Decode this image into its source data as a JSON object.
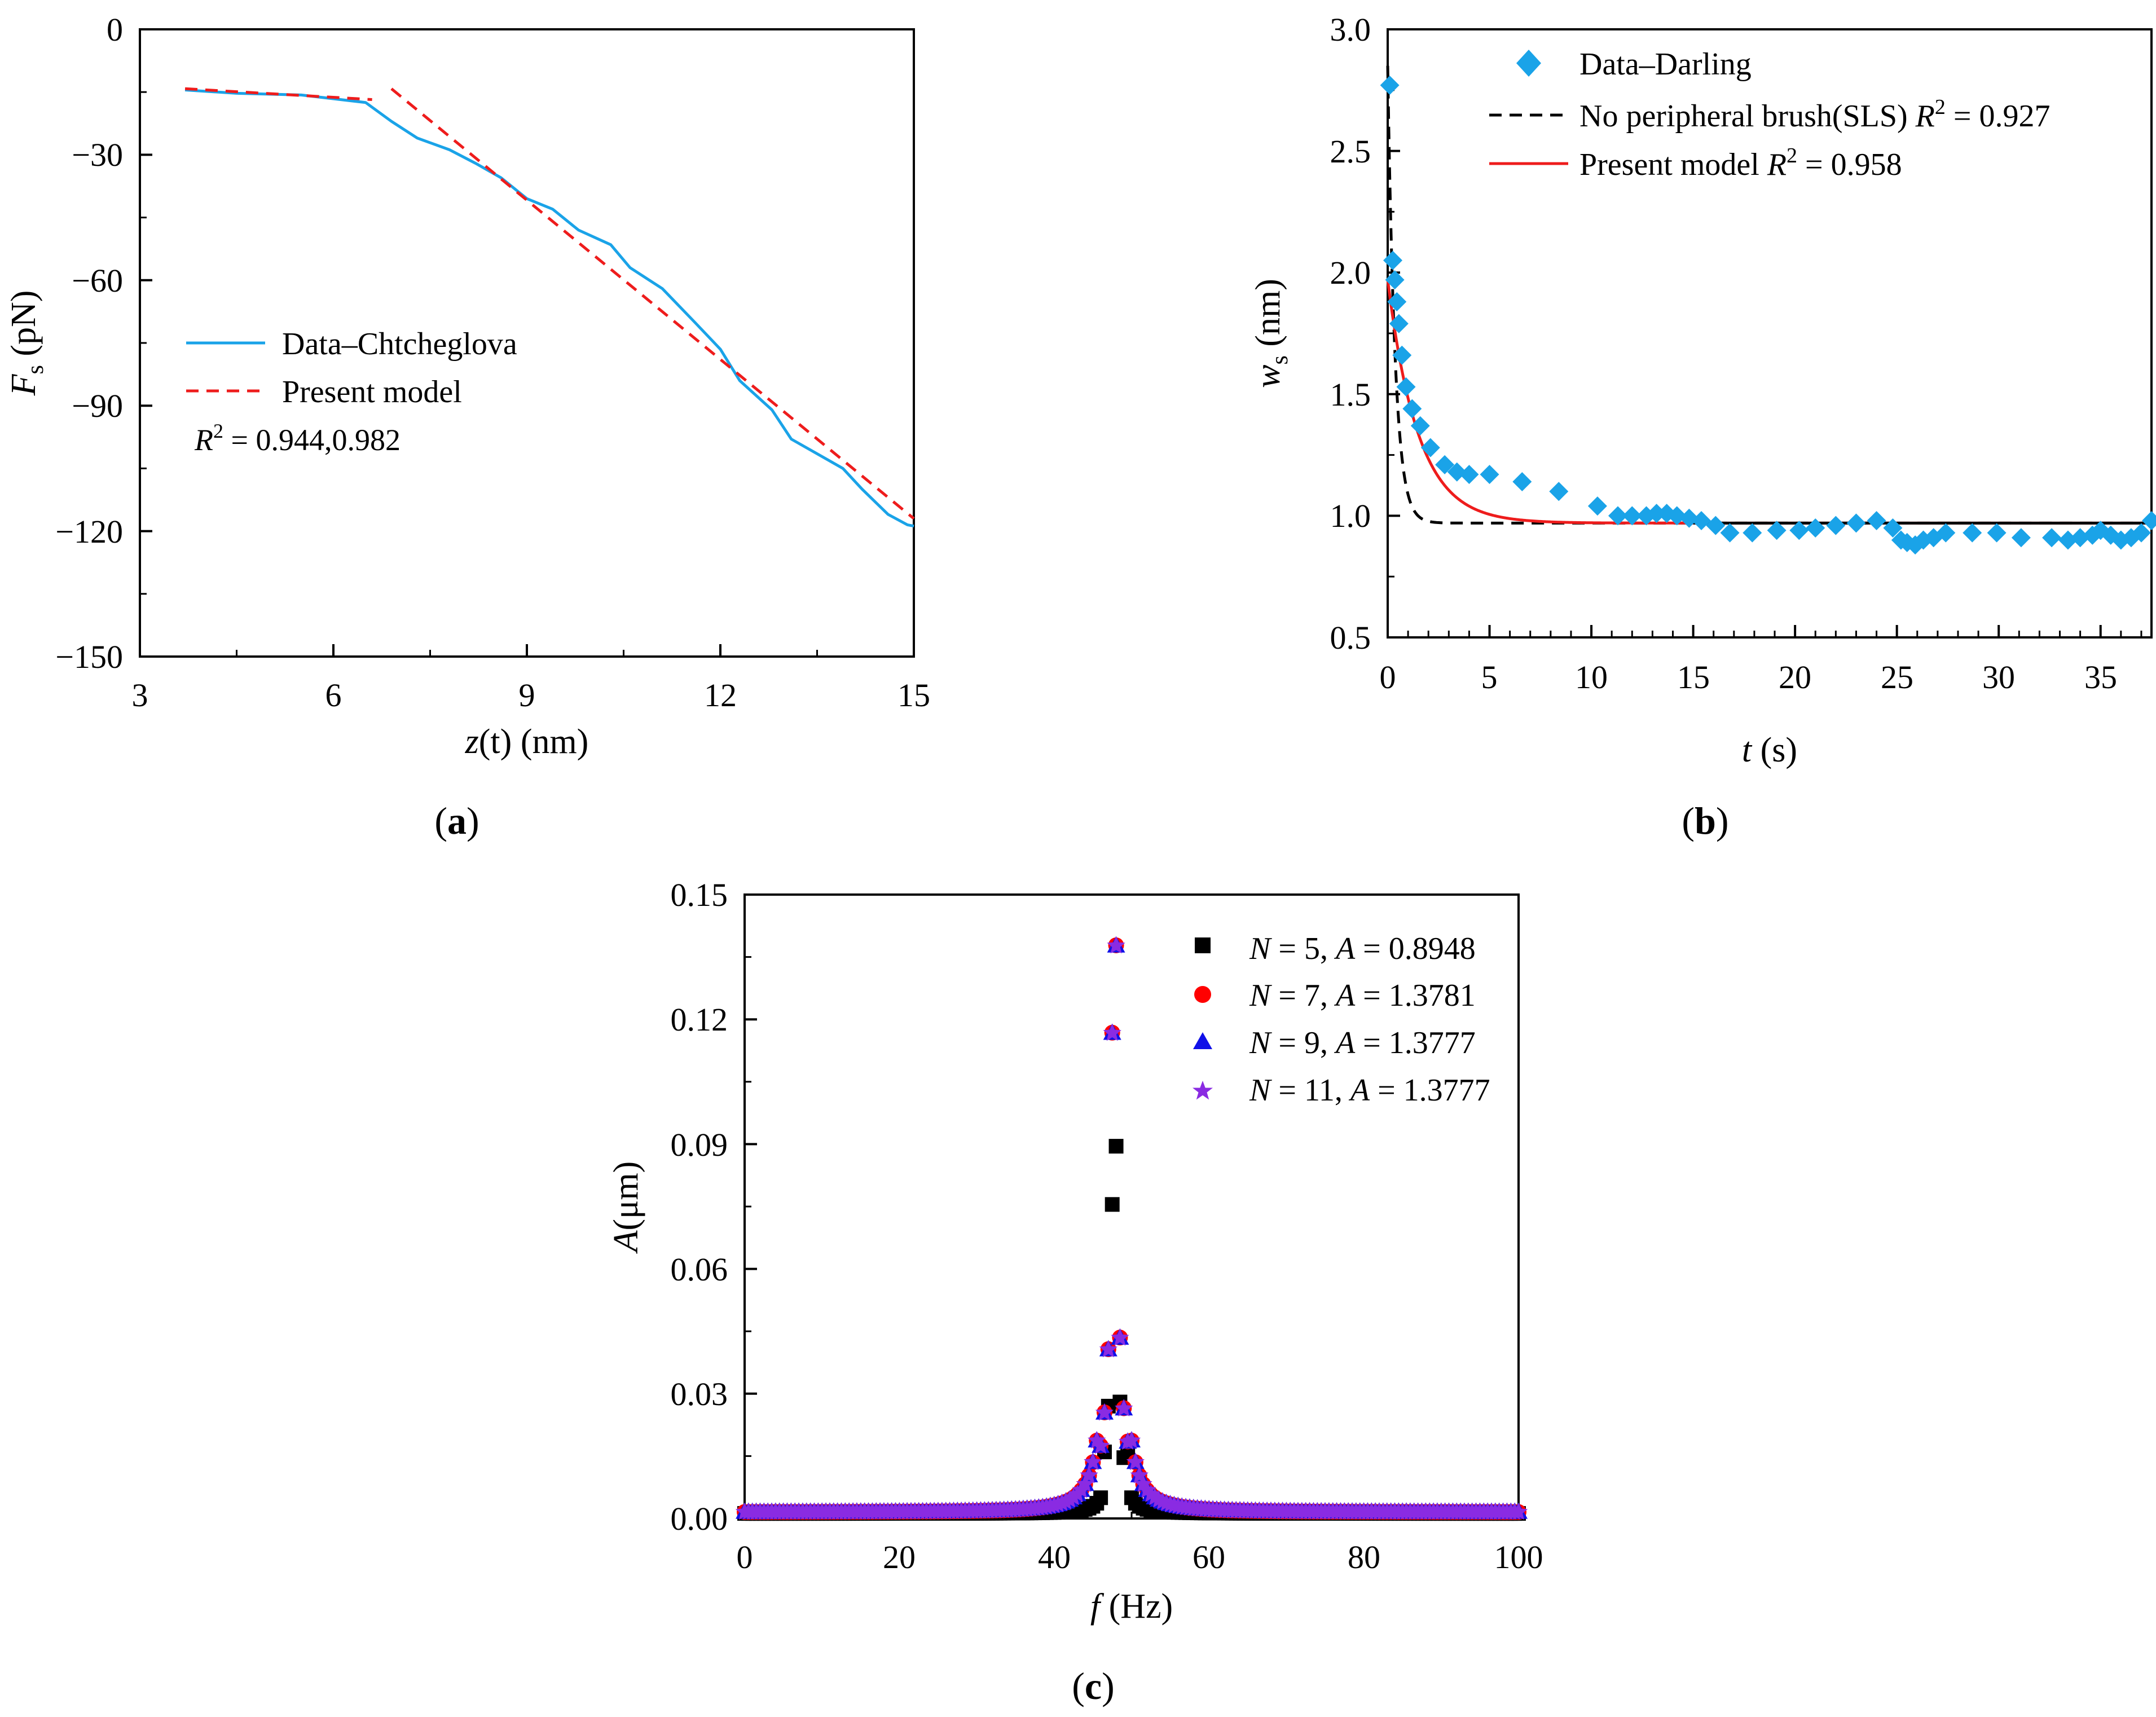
{
  "colors": {
    "axis": "#000000",
    "data_blue": "#1AA3E8",
    "model_red": "#EE1C1C",
    "black": "#000000",
    "red_marker": "#FF0000",
    "blue_marker": "#1010E8",
    "purple_marker": "#8A2BE2"
  },
  "chart_data": [
    {
      "id": "a",
      "panel_label": "a",
      "type": "line",
      "xlabel": {
        "var": "z",
        "arg": "(t)",
        "unit": " (nm)"
      },
      "ylabel": {
        "var": "F",
        "sub": "s",
        "unit": " (pN)"
      },
      "xlim": [
        3,
        15
      ],
      "ylim": [
        -150,
        0
      ],
      "xticks": [
        3,
        6,
        9,
        12,
        15
      ],
      "xtick_labels": [
        "3",
        "6",
        "9",
        "12",
        "15"
      ],
      "yticks": [
        0,
        -30,
        -60,
        -90,
        -120,
        -150
      ],
      "ytick_labels": [
        "0",
        "−30",
        "−60",
        "−90",
        "−120",
        "−150"
      ],
      "legend_position": "center-left",
      "series": [
        {
          "name": "Data–Chtcheglova",
          "style": "solid",
          "color": "#1AA3E8",
          "x": [
            3.7,
            4.5,
            5.5,
            6.5,
            6.9,
            7.3,
            7.8,
            8.2,
            8.6,
            9.0,
            9.4,
            9.8,
            10.3,
            10.6,
            11.1,
            11.6,
            12.0,
            12.3,
            12.8,
            13.1,
            13.5,
            13.9,
            14.2,
            14.6,
            14.9,
            15.0
          ],
          "y": [
            -14.5,
            -15.3,
            -15.7,
            -17.5,
            -22.0,
            -26.0,
            -28.8,
            -32.0,
            -35.5,
            -40.5,
            -43.0,
            -48.0,
            -51.5,
            -57.0,
            -62.0,
            -70.0,
            -76.5,
            -84.0,
            -91.0,
            -98.0,
            -101.5,
            -105.0,
            -110.0,
            -116.0,
            -118.5,
            -118.8
          ]
        },
        {
          "name": "Present model",
          "style": "dashed",
          "color": "#EE1C1C",
          "segments": [
            {
              "x": [
                3.7,
                6.6
              ],
              "y": [
                -14.2,
                -16.8
              ]
            },
            {
              "x": [
                6.9,
                15.0
              ],
              "y": [
                -14.2,
                -117.0
              ]
            }
          ]
        }
      ],
      "annotation": {
        "prefix": "R",
        "sup": "2",
        "text": " = 0.944,0.982"
      }
    },
    {
      "id": "b",
      "panel_label": "b",
      "type": "scatter+line",
      "xlabel": {
        "var": "t",
        "unit": " (s)"
      },
      "ylabel": {
        "var": "w",
        "sub": "s",
        "unit": " (nm)"
      },
      "xlim": [
        0,
        37.5
      ],
      "ylim": [
        0.5,
        3.0
      ],
      "xticks": [
        0,
        5,
        10,
        15,
        20,
        25,
        30,
        35
      ],
      "xtick_labels": [
        "0",
        "5",
        "10",
        "15",
        "20",
        "25",
        "30",
        "35"
      ],
      "yticks": [
        0.5,
        1.0,
        1.5,
        2.0,
        2.5,
        3.0
      ],
      "ytick_labels": [
        "0.5",
        "1.0",
        "1.5",
        "2.0",
        "2.5",
        "3.0"
      ],
      "legend_position": "top-right",
      "series": [
        {
          "name": "Data–Darling",
          "marker": "diamond",
          "color": "#1AA3E8",
          "x": [
            0.1,
            0.25,
            0.35,
            0.45,
            0.55,
            0.7,
            0.9,
            1.2,
            1.6,
            2.1,
            2.8,
            3.4,
            4.0,
            5.0,
            6.6,
            8.4,
            10.3,
            11.3,
            12.0,
            12.7,
            13.2,
            13.7,
            14.2,
            14.8,
            15.4,
            16.1,
            16.8,
            17.9,
            19.1,
            20.2,
            21.0,
            22.0,
            23.0,
            24.0,
            24.8,
            25.2,
            25.5,
            25.9,
            26.3,
            26.8,
            27.4,
            28.7,
            29.9,
            31.1,
            32.6,
            33.4,
            34.0,
            34.6,
            35.0,
            35.5,
            36.0,
            36.5,
            37.0,
            37.5
          ],
          "y": [
            2.77,
            2.05,
            1.97,
            1.88,
            1.79,
            1.66,
            1.53,
            1.44,
            1.37,
            1.28,
            1.21,
            1.18,
            1.17,
            1.17,
            1.14,
            1.1,
            1.04,
            1.0,
            1.0,
            1.0,
            1.01,
            1.01,
            1.0,
            0.99,
            0.98,
            0.96,
            0.93,
            0.93,
            0.94,
            0.94,
            0.95,
            0.96,
            0.97,
            0.98,
            0.95,
            0.9,
            0.89,
            0.88,
            0.9,
            0.91,
            0.93,
            0.93,
            0.93,
            0.91,
            0.91,
            0.9,
            0.91,
            0.92,
            0.94,
            0.92,
            0.9,
            0.91,
            0.93,
            0.98
          ]
        },
        {
          "name": "No peripheral brush(SLS)",
          "r2": "0.927",
          "style": "dashed",
          "color": "#000000",
          "model": {
            "a": 0.97,
            "b": 1.88,
            "tau": 0.36
          }
        },
        {
          "name": "Present model",
          "r2": "0.958",
          "style": "solid",
          "color": "#EE1C1C",
          "model": {
            "a": 0.97,
            "b": 1.0,
            "tau": 1.5
          }
        }
      ],
      "reference_line": {
        "y": 0.97,
        "x": [
          15,
          37.5
        ],
        "color": "#000000"
      },
      "r2_prefix": "R",
      "r2_sup": "2"
    },
    {
      "id": "c",
      "panel_label": "c",
      "type": "scatter",
      "xlabel": {
        "var": "f",
        "unit": " (Hz)"
      },
      "ylabel": {
        "var": "A",
        "unit": "(μm)"
      },
      "xlim": [
        0,
        100
      ],
      "ylim": [
        0,
        0.15
      ],
      "xticks": [
        0,
        20,
        40,
        60,
        80,
        100
      ],
      "xtick_labels": [
        "0",
        "20",
        "40",
        "60",
        "80",
        "100"
      ],
      "yticks": [
        0,
        0.03,
        0.06,
        0.09,
        0.12,
        0.15
      ],
      "ytick_labels": [
        "0.00",
        "0.03",
        "0.06",
        "0.09",
        "0.12",
        "0.15"
      ],
      "legend_position": "top-right",
      "x_step": 0.5,
      "series": [
        {
          "name": "N = 5, A = 0.8948",
          "n_label": "N",
          "n_val": " = 5, ",
          "a_label": "A",
          "a_val": " = 0.8948",
          "marker": "square",
          "color": "#000000",
          "model": {
            "f0": 48,
            "gamma": 0.42,
            "peak": 0.0895,
            "floor": 0.0012
          },
          "peaks": [
            [
              47.5,
              0.0755
            ],
            [
              48.0,
              0.0895
            ],
            [
              46.5,
              0.016
            ],
            [
              49.5,
              0.016
            ],
            [
              47.0,
              0.027
            ],
            [
              48.5,
              0.028
            ]
          ]
        },
        {
          "name": "N = 7, A = 1.3781",
          "n_label": "N",
          "n_val": " = 7, ",
          "a_label": "A",
          "a_val": " = 1.3781",
          "marker": "circle",
          "color": "#FF0000",
          "model": {
            "f0": 47.75,
            "gamma": 0.85,
            "peak": 0.1378,
            "floor": 0.0015
          },
          "peaks": [
            [
              48.0,
              0.1378
            ],
            [
              47.5,
              0.1168
            ],
            [
              47.0,
              0.0407
            ],
            [
              48.5,
              0.0435
            ],
            [
              46.5,
              0.0255
            ],
            [
              49.0,
              0.0265
            ],
            [
              46.0,
              0.0175
            ],
            [
              49.5,
              0.0185
            ]
          ]
        },
        {
          "name": "N = 9, A = 1.3777",
          "n_label": "N",
          "n_val": " = 9, ",
          "a_label": "A",
          "a_val": " = 1.3777",
          "marker": "triangle",
          "color": "#1010E8",
          "model": {
            "f0": 47.75,
            "gamma": 0.85,
            "peak": 0.1377,
            "floor": 0.0015
          },
          "peaks": [
            [
              48.0,
              0.1377
            ],
            [
              47.5,
              0.1167
            ],
            [
              47.0,
              0.0406
            ],
            [
              48.5,
              0.0434
            ],
            [
              46.5,
              0.0254
            ],
            [
              49.0,
              0.0264
            ],
            [
              46.0,
              0.0174
            ],
            [
              49.5,
              0.0184
            ]
          ]
        },
        {
          "name": "N = 11, A = 1.3777",
          "n_label": "N",
          "n_val": " = 11, ",
          "a_label": "A",
          "a_val": " = 1.3777",
          "marker": "star",
          "color": "#8A2BE2",
          "model": {
            "f0": 47.75,
            "gamma": 0.85,
            "peak": 0.1377,
            "floor": 0.0015
          },
          "peaks": [
            [
              48.0,
              0.1377
            ],
            [
              47.5,
              0.1167
            ],
            [
              47.0,
              0.0406
            ],
            [
              48.5,
              0.0434
            ],
            [
              46.5,
              0.0254
            ],
            [
              49.0,
              0.0264
            ],
            [
              46.0,
              0.0174
            ],
            [
              49.5,
              0.0184
            ]
          ]
        }
      ]
    }
  ]
}
